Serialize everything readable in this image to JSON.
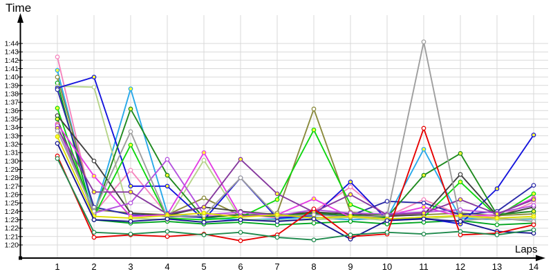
{
  "axes": {
    "y_title": "Time",
    "x_title": "Laps"
  },
  "chart_data": {
    "type": "line",
    "title": "",
    "xlabel": "Laps",
    "ylabel": "Time",
    "x": [
      1,
      2,
      3,
      4,
      5,
      6,
      7,
      8,
      9,
      10,
      11,
      12,
      13,
      14
    ],
    "y_tick_labels": [
      "1:20",
      "1:21",
      "1:22",
      "1:23",
      "1:24",
      "1:25",
      "1:26",
      "1:27",
      "1:28",
      "1:29",
      "1:30",
      "1:31",
      "1:32",
      "1:33",
      "1:34",
      "1:35",
      "1:36",
      "1:37",
      "1:38",
      "1:39",
      "1:40",
      "1:41",
      "1:42",
      "1:43",
      "1:44"
    ],
    "y_tick_seconds_base": 80,
    "ylim_seconds": [
      80,
      105
    ],
    "grid": "both",
    "legend": "none",
    "values_unit": "seconds past 1:00 (e.g. 102.4 = 1:42.4)",
    "series": [
      {
        "name": "pink",
        "color": "#f585bd",
        "marker_fill": "#ffffff",
        "values": [
          102.4,
          83.8,
          88.9,
          83.6,
          83.4,
          83.7,
          83.2,
          84.0,
          86.9,
          83.4,
          85.4,
          83.6,
          83.3,
          85.1
        ]
      },
      {
        "name": "deepskyblue",
        "color": "#29a9ea",
        "marker_fill": "#ffff33",
        "values": [
          100.8,
          83.7,
          98.6,
          83.8,
          83.2,
          83.0,
          83.1,
          83.3,
          83.0,
          83.2,
          91.4,
          83.2,
          83.0,
          83.1
        ]
      },
      {
        "name": "olive",
        "color": "#8a8a3c",
        "marker_fill": "#ffffff",
        "values": [
          100.0,
          84.2,
          83.8,
          83.6,
          85.6,
          83.5,
          83.8,
          96.2,
          83.9,
          83.5,
          83.6,
          83.8,
          83.5,
          83.7
        ]
      },
      {
        "name": "green",
        "color": "#00a41f",
        "marker_fill": "#ffffff",
        "values": [
          99.3,
          83.0,
          82.6,
          82.8,
          82.5,
          82.7,
          82.4,
          82.6,
          82.8,
          82.5,
          82.7,
          82.9,
          82.4,
          82.6
        ]
      },
      {
        "name": "palegreen",
        "color": "#b6d489",
        "marker_fill": "#ffffff",
        "values": [
          98.9,
          98.8,
          83.2,
          83.0,
          90.1,
          83.1,
          82.9,
          83.0,
          83.3,
          82.9,
          83.1,
          83.4,
          83.0,
          83.2
        ]
      },
      {
        "name": "blue",
        "color": "#1414dc",
        "marker_fill": "#ffff33",
        "values": [
          98.7,
          100.0,
          87.0,
          87.0,
          83.0,
          88.0,
          83.2,
          83.5,
          87.5,
          83.0,
          83.2,
          82.5,
          86.7,
          93.1
        ]
      },
      {
        "name": "navy",
        "color": "#2a2aa8",
        "marker_fill": "#ffffff",
        "values": [
          98.5,
          84.5,
          83.6,
          83.4,
          83.3,
          83.6,
          83.4,
          83.7,
          83.5,
          85.2,
          85.0,
          83.6,
          84.0,
          87.1
        ]
      },
      {
        "name": "brightgreen",
        "color": "#0fd60f",
        "marker_fill": "#ffff33",
        "values": [
          96.3,
          83.4,
          91.9,
          83.2,
          83.0,
          83.3,
          85.4,
          93.7,
          84.8,
          83.1,
          83.3,
          87.5,
          83.4,
          86.1
        ]
      },
      {
        "name": "darkgray",
        "color": "#404040",
        "marker_fill": "#ffffff",
        "values": [
          95.4,
          90.0,
          83.8,
          83.5,
          84.5,
          84.0,
          83.6,
          83.9,
          83.7,
          83.4,
          83.6,
          88.4,
          83.5,
          84.5
        ]
      },
      {
        "name": "forestgreen",
        "color": "#1e8a1e",
        "marker_fill": "#ffff33",
        "values": [
          95.0,
          83.6,
          96.2,
          88.3,
          83.2,
          83.6,
          83.4,
          83.8,
          83.5,
          83.3,
          88.3,
          90.9,
          83.6,
          84.0
        ]
      },
      {
        "name": "magenta",
        "color": "#e33de3",
        "marker_fill": "#ffff33",
        "values": [
          94.4,
          88.2,
          83.4,
          83.6,
          91.0,
          83.4,
          83.6,
          85.5,
          83.3,
          83.5,
          84.5,
          83.4,
          83.6,
          85.6
        ]
      },
      {
        "name": "violet",
        "color": "#b553de",
        "marker_fill": "#ffffff",
        "values": [
          94.2,
          83.8,
          85.0,
          90.2,
          83.6,
          83.9,
          83.5,
          84.2,
          83.8,
          83.7,
          83.9,
          84.2,
          83.8,
          84.7
        ]
      },
      {
        "name": "purple",
        "color": "#86399e",
        "marker_fill": "#ffff33",
        "values": [
          93.9,
          86.3,
          86.3,
          83.7,
          84.5,
          90.2,
          86.1,
          83.9,
          86.0,
          83.6,
          83.8,
          85.4,
          83.7,
          85.4
        ]
      },
      {
        "name": "gray",
        "color": "#9e9e9e",
        "marker_fill": "#ffffff",
        "values": [
          93.6,
          84.0,
          93.5,
          83.3,
          83.5,
          88.0,
          83.4,
          83.6,
          83.3,
          83.5,
          104.2,
          82.9,
          83.2,
          82.8
        ]
      },
      {
        "name": "yellow",
        "color": "#dcdc00",
        "marker_fill": "#ffff33",
        "values": [
          92.9,
          83.4,
          83.2,
          83.5,
          83.8,
          83.3,
          83.6,
          83.2,
          83.4,
          83.1,
          83.3,
          83.5,
          83.2,
          83.4
        ]
      },
      {
        "name": "darkblue",
        "color": "#16168f",
        "marker_fill": "#ffffff",
        "values": [
          92.1,
          83.0,
          82.8,
          83.1,
          82.7,
          83.0,
          82.8,
          83.1,
          80.7,
          82.9,
          83.1,
          82.8,
          81.6,
          81.4
        ]
      },
      {
        "name": "red",
        "color": "#e60000",
        "marker_fill": "#ffffff",
        "values": [
          90.6,
          80.9,
          81.2,
          81.0,
          81.3,
          80.5,
          81.2,
          84.3,
          81.0,
          81.3,
          93.9,
          81.2,
          81.4,
          82.4
        ]
      },
      {
        "name": "seagreen",
        "color": "#1f8a4d",
        "marker_fill": "#ffffff",
        "values": [
          90.3,
          81.5,
          81.3,
          81.6,
          81.2,
          81.5,
          80.9,
          80.6,
          81.2,
          81.5,
          81.3,
          81.6,
          81.2,
          81.8
        ]
      }
    ]
  },
  "colors": {
    "grid": "#d9d9d9",
    "axis": "#000000",
    "background": "#ffffff"
  }
}
